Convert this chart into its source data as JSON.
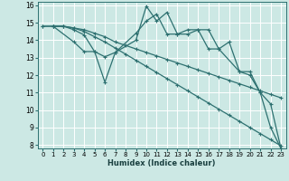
{
  "xlabel": "Humidex (Indice chaleur)",
  "bg_color": "#cce8e4",
  "line_color": "#2d7070",
  "grid_color": "#ffffff",
  "xlim": [
    -0.5,
    23.5
  ],
  "ylim": [
    7.8,
    16.2
  ],
  "yticks": [
    8,
    9,
    10,
    11,
    12,
    13,
    14,
    15,
    16
  ],
  "xticks": [
    0,
    1,
    2,
    3,
    4,
    5,
    6,
    7,
    8,
    9,
    10,
    11,
    12,
    13,
    14,
    15,
    16,
    17,
    18,
    19,
    20,
    21,
    22,
    23
  ],
  "lines": [
    {
      "x": [
        0,
        1,
        2,
        3,
        4,
        5,
        6,
        7,
        8,
        9,
        10,
        11,
        12,
        13,
        14,
        15,
        16,
        17,
        18,
        19,
        20,
        21,
        22,
        23
      ],
      "y": [
        14.8,
        14.8,
        14.8,
        14.7,
        14.6,
        14.4,
        14.2,
        13.9,
        13.7,
        13.5,
        13.3,
        13.1,
        12.9,
        12.7,
        12.5,
        12.3,
        12.1,
        11.9,
        11.7,
        11.5,
        11.3,
        11.1,
        10.9,
        10.7
      ]
    },
    {
      "x": [
        0,
        1,
        2,
        3,
        4,
        5,
        6,
        7,
        8,
        9,
        10,
        11,
        12,
        13,
        14,
        15,
        16,
        17,
        18,
        19,
        20,
        21,
        22,
        23
      ],
      "y": [
        14.8,
        14.8,
        14.8,
        14.7,
        14.5,
        14.2,
        13.9,
        13.55,
        13.2,
        12.85,
        12.5,
        12.15,
        11.8,
        11.45,
        11.1,
        10.75,
        10.4,
        10.05,
        9.7,
        9.35,
        9.0,
        8.65,
        8.3,
        7.95
      ]
    },
    {
      "x": [
        1,
        3,
        4,
        5,
        6,
        7,
        9,
        10,
        11,
        12,
        13,
        14,
        15,
        16,
        17,
        18,
        19,
        20,
        21,
        22,
        23
      ],
      "y": [
        14.8,
        13.9,
        13.35,
        13.35,
        11.6,
        13.3,
        14.0,
        15.95,
        15.1,
        15.6,
        14.35,
        14.35,
        14.6,
        14.6,
        13.5,
        13.9,
        12.2,
        12.2,
        11.0,
        10.35,
        7.8
      ]
    },
    {
      "x": [
        1,
        2,
        3,
        4,
        5,
        6,
        7,
        9,
        10,
        11,
        12,
        13,
        14,
        15,
        16,
        17,
        19,
        20,
        21,
        22,
        23
      ],
      "y": [
        14.8,
        14.8,
        14.6,
        14.3,
        13.35,
        13.05,
        13.3,
        14.4,
        15.1,
        15.5,
        14.35,
        14.35,
        14.6,
        14.6,
        13.5,
        13.5,
        12.2,
        12.0,
        11.0,
        9.0,
        7.8
      ]
    }
  ]
}
